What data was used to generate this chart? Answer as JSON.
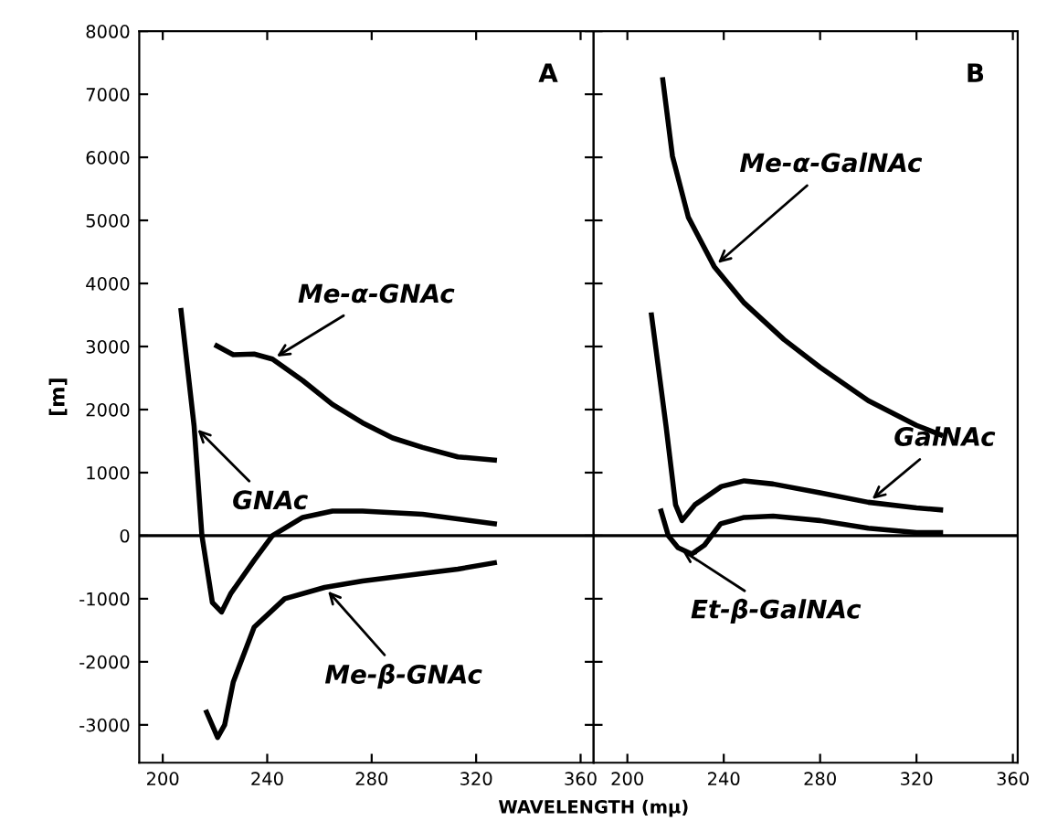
{
  "chart_data": [
    {
      "type": "line",
      "xlabel": "WAVELENGTH (mμ)",
      "ylabel": "[m]",
      "xlim": [
        191,
        365
      ],
      "xticks": [
        200,
        240,
        280,
        320,
        360
      ],
      "ylim": [
        -3600,
        8000
      ],
      "yticks": [
        -3000,
        -2000,
        -1000,
        0,
        1000,
        2000,
        3000,
        4000,
        5000,
        6000,
        7000,
        8000
      ],
      "grid": false,
      "legend": false,
      "marker": "none",
      "line_style": "solid",
      "ref_lines": [
        {
          "axis": "y",
          "value": 0,
          "color": "#000000"
        }
      ],
      "annotations": [
        "A",
        {
          "text": "Me-α-GNAc",
          "x": 242,
          "y": 2800
        },
        {
          "text": "GNAc",
          "x": 212,
          "y": 1740
        },
        {
          "text": "Me-β-GNAc",
          "x": 262,
          "y": -820
        }
      ],
      "series": [
        {
          "color": "#000000",
          "x": [
            207,
            212,
            215,
            219,
            222.5,
            226,
            235,
            242,
            253.6,
            265,
            276.5,
            299.5,
            327
          ],
          "values": [
            3570,
            1740,
            0,
            -1060,
            -1210,
            -920,
            -390,
            0,
            290,
            390,
            390,
            340,
            190
          ]
        },
        {
          "color": "#000000",
          "x": [
            220.7,
            227,
            235,
            242,
            253.6,
            265,
            276.5,
            288,
            299.5,
            313,
            327
          ],
          "values": [
            3010,
            2870,
            2880,
            2800,
            2460,
            2080,
            1790,
            1550,
            1400,
            1250,
            1200
          ]
        },
        {
          "color": "#000000",
          "x": [
            216.8,
            221,
            223.7,
            227,
            235,
            246.7,
            262,
            276.5,
            299.5,
            313,
            327
          ],
          "values": [
            -2800,
            -3200,
            -3000,
            -2320,
            -1450,
            -1000,
            -820,
            -720,
            -600,
            -530,
            -430
          ]
        }
      ]
    },
    {
      "type": "line",
      "xlim": [
        186,
        362
      ],
      "xticks": [
        200,
        240,
        280,
        320,
        360
      ],
      "ylim": [
        -3600,
        8000
      ],
      "yticks": [
        -3000,
        -2000,
        -1000,
        0,
        1000,
        2000,
        3000,
        4000,
        5000,
        6000,
        7000,
        8000
      ],
      "tick_labels": "x",
      "grid": false,
      "legend": false,
      "marker": "none",
      "line_style": "solid",
      "ref_lines": [
        {
          "axis": "y",
          "value": 0,
          "color": "#000000"
        }
      ],
      "annotations": [
        "B",
        {
          "text": "Me-α-GalNAc",
          "x": 236,
          "y": 4270
        },
        {
          "text": "GalNAc",
          "x": 300,
          "y": 530
        },
        {
          "text": "Et-β-GalNAc",
          "x": 221,
          "y": -190
        }
      ],
      "series": [
        {
          "color": "#000000",
          "x": [
            214.7,
            218.7,
            225.3,
            236,
            248.5,
            265,
            280,
            300,
            320,
            330
          ],
          "values": [
            7230,
            6020,
            5050,
            4270,
            3690,
            3110,
            2670,
            2140,
            1750,
            1600
          ]
        },
        {
          "color": "#000000",
          "x": [
            210,
            216,
            220,
            222.7,
            228,
            239,
            248.5,
            260.5,
            280,
            300,
            320,
            330
          ],
          "values": [
            3500,
            1750,
            490,
            240,
            490,
            780,
            870,
            820,
            680,
            530,
            440,
            410
          ]
        },
        {
          "color": "#000000",
          "x": [
            214,
            217,
            221,
            226.7,
            232,
            238.7,
            248.5,
            260.5,
            280,
            300,
            320,
            330
          ],
          "values": [
            390,
            0,
            -190,
            -290,
            -150,
            190,
            290,
            310,
            240,
            120,
            50,
            50
          ]
        }
      ]
    }
  ]
}
